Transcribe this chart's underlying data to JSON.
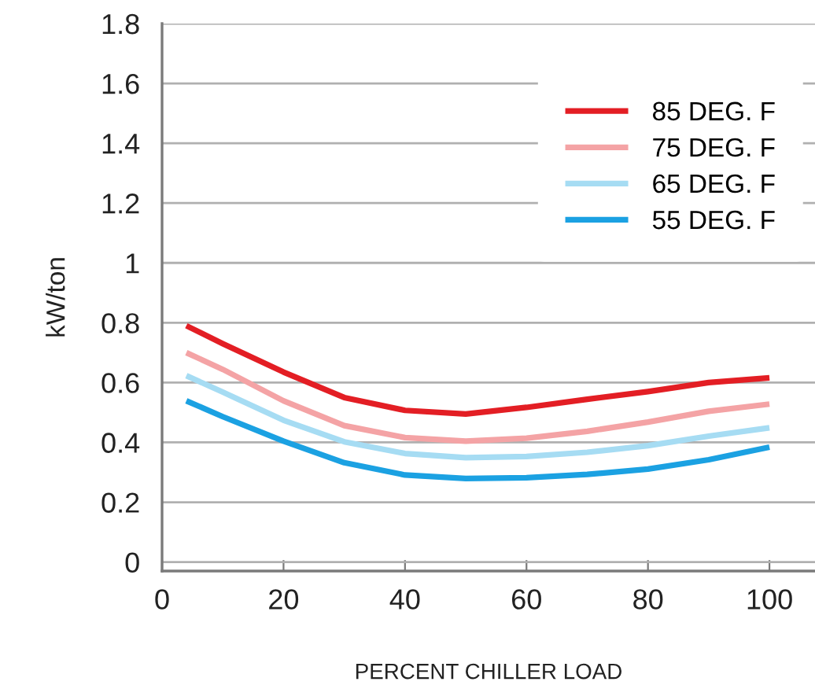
{
  "chart_data": {
    "type": "line",
    "xlabel": "PERCENT CHILLER LOAD",
    "ylabel": "kW/ton",
    "x": [
      4,
      10,
      20,
      30,
      40,
      50,
      60,
      70,
      80,
      90,
      100
    ],
    "series": [
      {
        "name": "85 DEG. F",
        "color": "#e31e24",
        "values": [
          0.79,
          0.73,
          0.635,
          0.55,
          0.507,
          0.495,
          0.517,
          0.544,
          0.57,
          0.6,
          0.616
        ]
      },
      {
        "name": "75 DEG. F",
        "color": "#f4a3a5",
        "values": [
          0.7,
          0.644,
          0.539,
          0.456,
          0.416,
          0.404,
          0.414,
          0.437,
          0.468,
          0.504,
          0.528
        ]
      },
      {
        "name": "65 DEG. F",
        "color": "#a6dcf3",
        "values": [
          0.623,
          0.568,
          0.474,
          0.402,
          0.363,
          0.349,
          0.353,
          0.367,
          0.389,
          0.421,
          0.449
        ]
      },
      {
        "name": "55 DEG. F",
        "color": "#1ba1e2",
        "values": [
          0.539,
          0.486,
          0.404,
          0.332,
          0.291,
          0.279,
          0.282,
          0.293,
          0.311,
          0.342,
          0.384
        ]
      }
    ],
    "xlim": [
      0,
      107.5
    ],
    "xticks": [
      0,
      20,
      40,
      60,
      80,
      100
    ],
    "ylim": [
      -0.03,
      1.8
    ],
    "yticks": [
      0,
      0.2,
      0.4,
      0.6,
      0.8,
      1,
      1.2,
      1.4,
      1.6,
      1.8
    ],
    "grid": "y",
    "legend": "top right",
    "marker": "none",
    "line_style": "solid"
  }
}
